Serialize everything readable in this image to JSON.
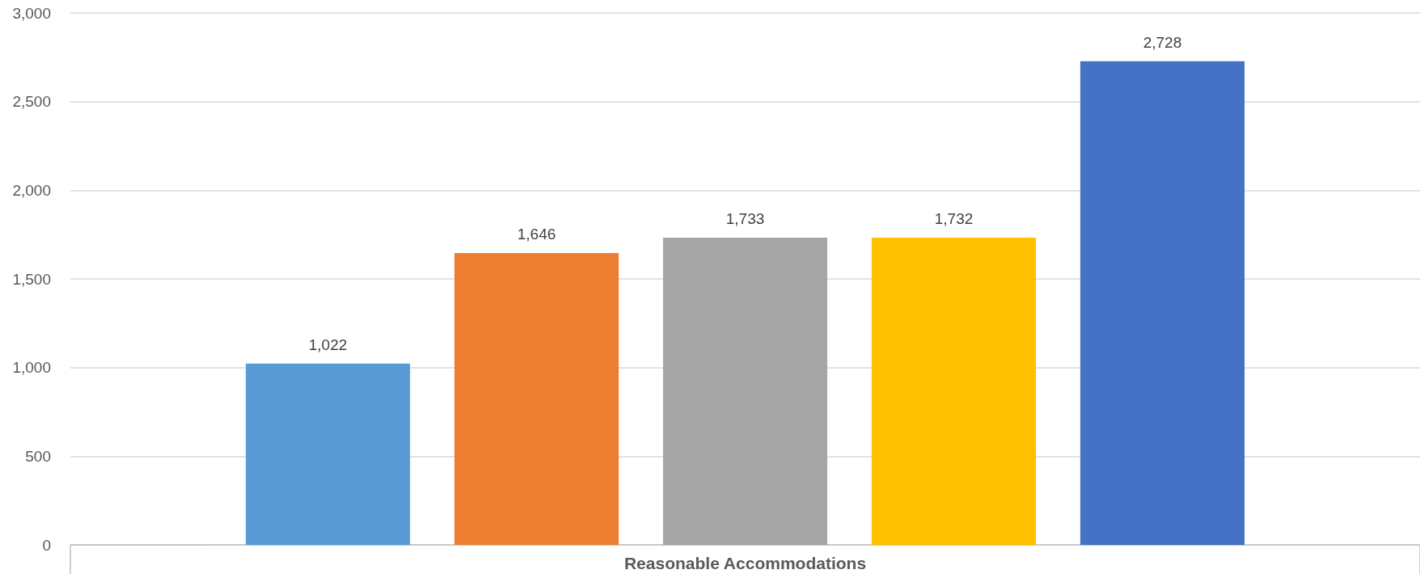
{
  "chart_data": {
    "type": "bar",
    "categories": [
      "Reasonable Accommodations"
    ],
    "series": [
      {
        "color": "#5b9bd5",
        "values": [
          1022
        ],
        "value_labels": [
          "1,022"
        ]
      },
      {
        "color": "#ed7d31",
        "values": [
          1646
        ],
        "value_labels": [
          "1,646"
        ]
      },
      {
        "color": "#a5a5a5",
        "values": [
          1733
        ],
        "value_labels": [
          "1,733"
        ]
      },
      {
        "color": "#ffc000",
        "values": [
          1732
        ],
        "value_labels": [
          "1,732"
        ]
      },
      {
        "color": "#4472c4",
        "values": [
          2728
        ],
        "value_labels": [
          "2,728"
        ]
      }
    ],
    "ylim": [
      0,
      3000
    ],
    "yticks": [
      0,
      500,
      {
        "value": 1000,
        "label": "1,000"
      },
      {
        "value": 1500,
        "label": "1,500"
      },
      {
        "value": 2000,
        "label": "2,000"
      },
      {
        "value": 2500,
        "label": "2,500"
      },
      {
        "value": 3000,
        "label": "3,000"
      }
    ],
    "grid": "y"
  }
}
